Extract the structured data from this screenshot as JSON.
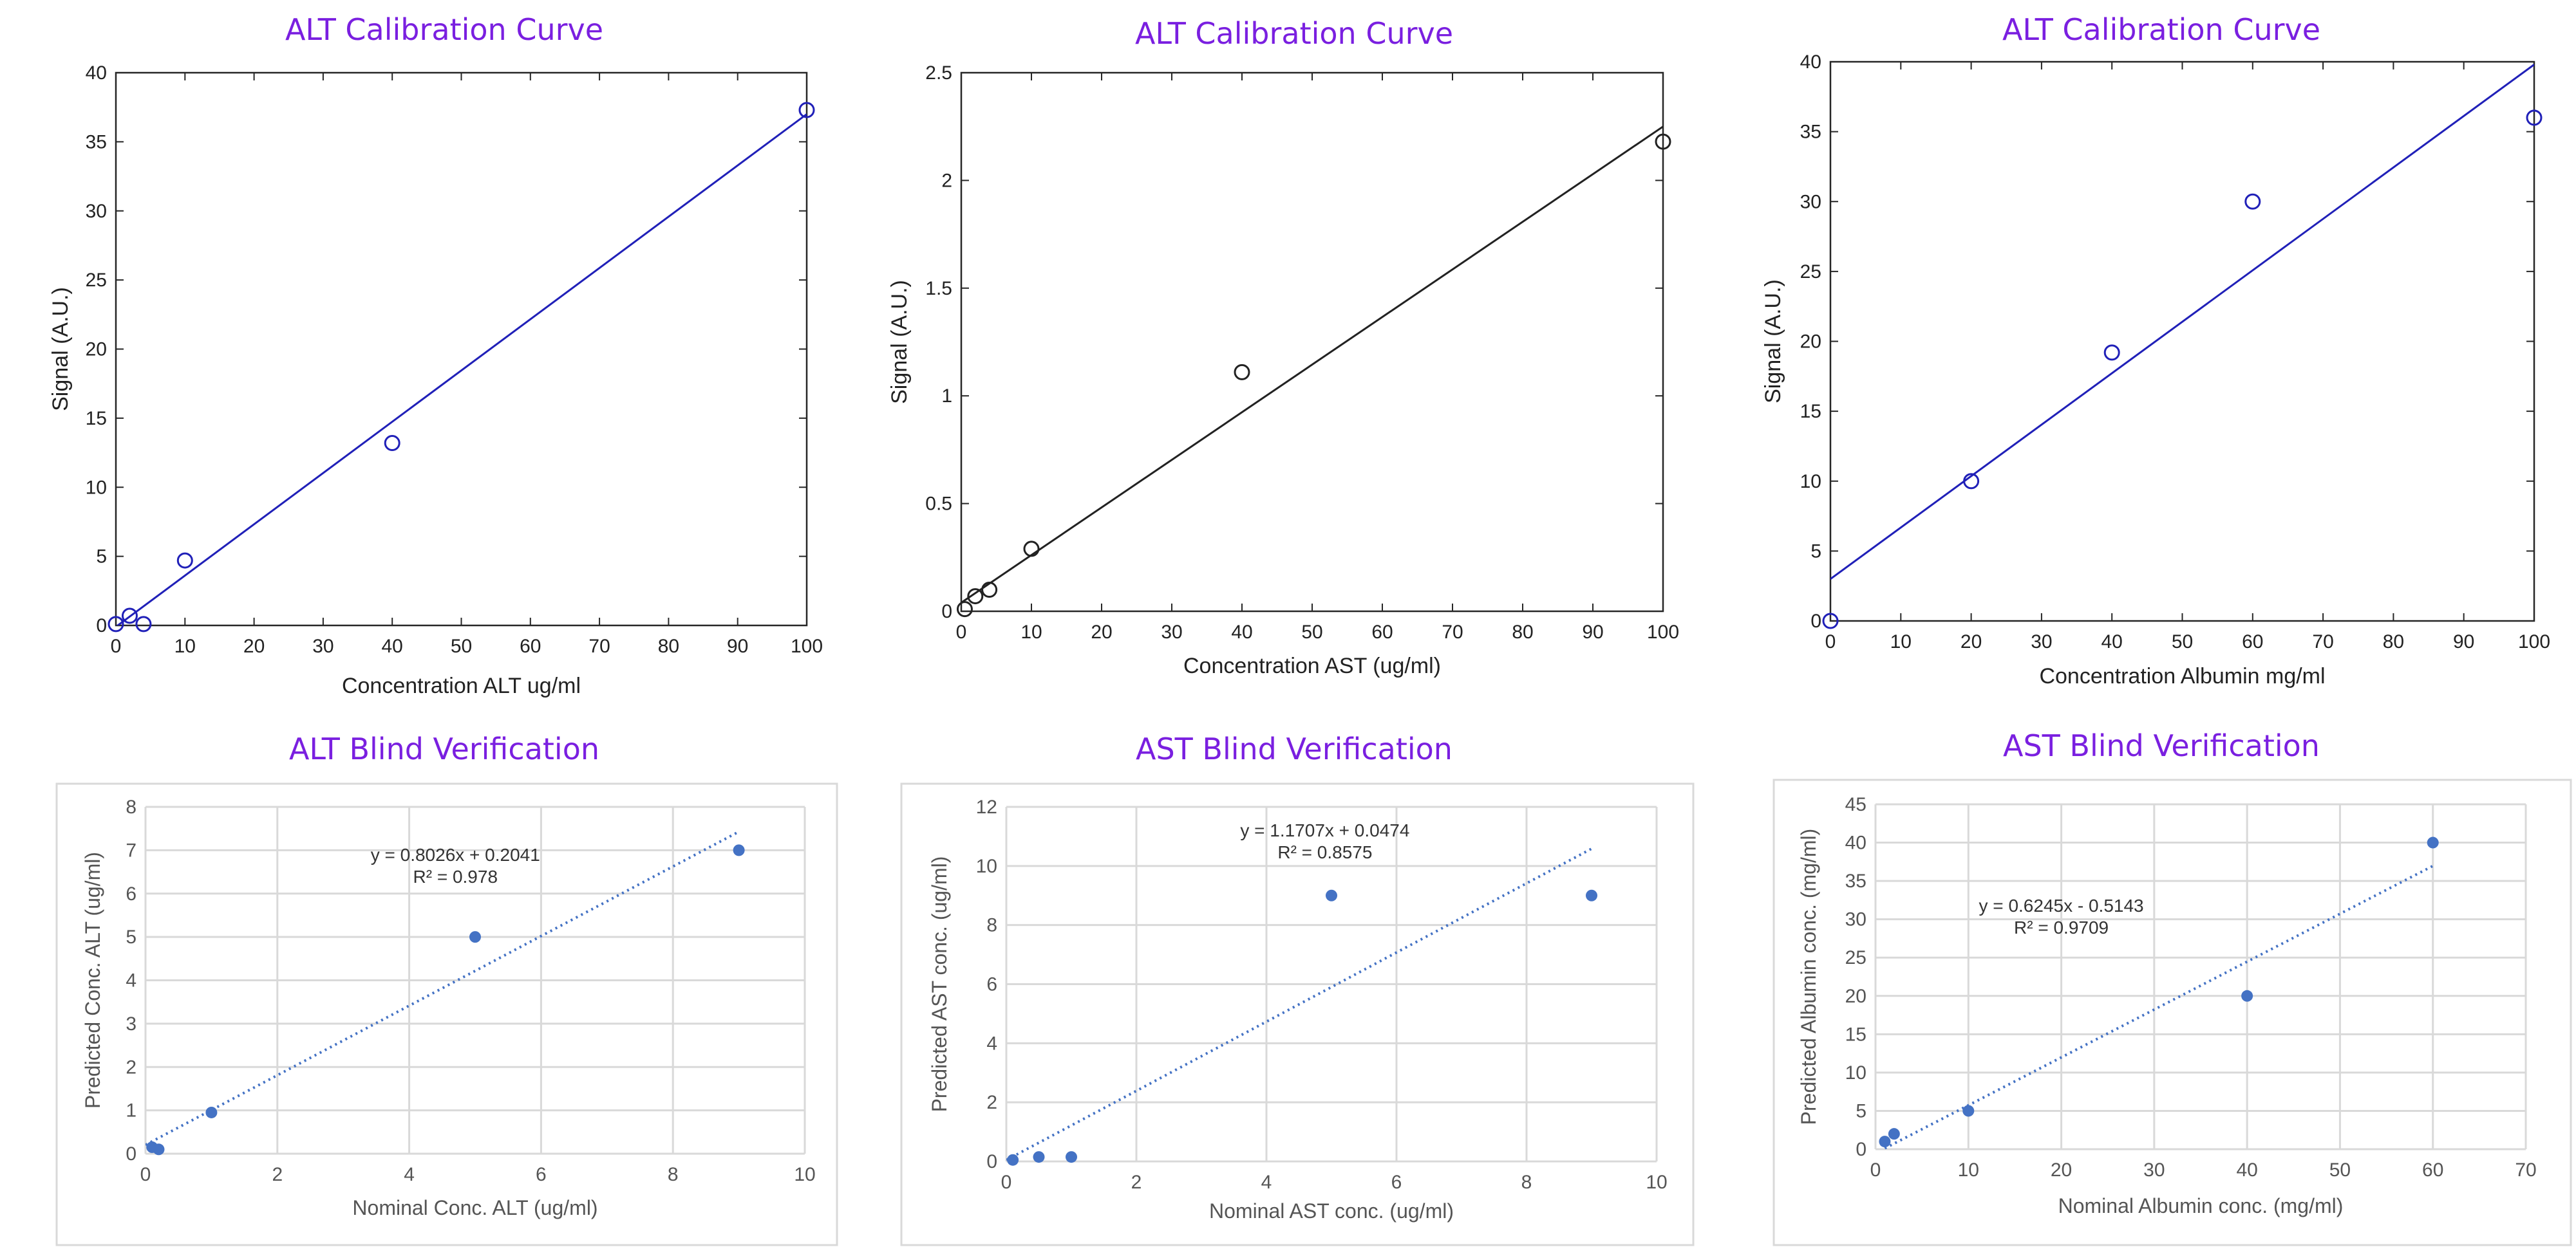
{
  "chart_data": [
    {
      "type": "scatter",
      "style": "matlab",
      "title": "ALT Calibration Curve",
      "xlabel": "Concentration ALT ug/ml",
      "ylabel": "Signal (A.U.)",
      "xlim": [
        0,
        100
      ],
      "ylim": [
        0,
        40
      ],
      "xticks": [
        0,
        10,
        20,
        30,
        40,
        50,
        60,
        70,
        80,
        90,
        100
      ],
      "yticks": [
        0,
        5,
        10,
        15,
        20,
        25,
        30,
        35,
        40
      ],
      "color": "#2020b8",
      "points": [
        {
          "x": 0,
          "y": 0.1
        },
        {
          "x": 2,
          "y": 0.7
        },
        {
          "x": 4,
          "y": 0.1
        },
        {
          "x": 10,
          "y": 4.7
        },
        {
          "x": 40,
          "y": 13.2
        },
        {
          "x": 100,
          "y": 37.3
        }
      ],
      "fit": {
        "x1": 0,
        "y1": -0.1,
        "x2": 100,
        "y2": 37.0
      }
    },
    {
      "type": "scatter",
      "style": "matlab",
      "title": "ALT Calibration Curve",
      "xlabel": "Concentration AST (ug/ml)",
      "ylabel": "Signal (A.U.)",
      "xlim": [
        0,
        100
      ],
      "ylim": [
        0,
        2.5
      ],
      "xticks": [
        0,
        10,
        20,
        30,
        40,
        50,
        60,
        70,
        80,
        90,
        100
      ],
      "yticks": [
        0,
        0.5,
        1,
        1.5,
        2,
        2.5
      ],
      "color": "#222222",
      "points": [
        {
          "x": 0.5,
          "y": 0.01
        },
        {
          "x": 2,
          "y": 0.07
        },
        {
          "x": 4,
          "y": 0.1
        },
        {
          "x": 10,
          "y": 0.29
        },
        {
          "x": 40,
          "y": 1.11
        },
        {
          "x": 100,
          "y": 2.18
        }
      ],
      "fit": {
        "x1": 0,
        "y1": 0.04,
        "x2": 100,
        "y2": 2.25
      }
    },
    {
      "type": "scatter",
      "style": "matlab",
      "title": "ALT Calibration Curve",
      "xlabel": "Concentration Albumin mg/ml",
      "ylabel": "Signal (A.U.)",
      "xlim": [
        0,
        100
      ],
      "ylim": [
        0,
        40
      ],
      "xticks": [
        0,
        10,
        20,
        30,
        40,
        50,
        60,
        70,
        80,
        90,
        100
      ],
      "yticks": [
        0,
        5,
        10,
        15,
        20,
        25,
        30,
        35,
        40
      ],
      "color": "#2020b8",
      "points": [
        {
          "x": 0,
          "y": 0
        },
        {
          "x": 20,
          "y": 10
        },
        {
          "x": 40,
          "y": 19.2
        },
        {
          "x": 60,
          "y": 30
        },
        {
          "x": 100,
          "y": 36
        }
      ],
      "fit": {
        "x1": 0,
        "y1": 3.0,
        "x2": 100,
        "y2": 39.8
      }
    },
    {
      "type": "scatter",
      "style": "excel",
      "title": "ALT Blind Verification",
      "xlabel": "Nominal Conc. ALT (ug/ml)",
      "ylabel": "Predicted Conc. ALT (ug/ml)",
      "xlim": [
        0,
        10
      ],
      "ylim": [
        0,
        8
      ],
      "xticks": [
        0,
        2,
        4,
        6,
        8,
        10
      ],
      "yticks": [
        0,
        1,
        2,
        3,
        4,
        5,
        6,
        7,
        8
      ],
      "color": "#4472c4",
      "points": [
        {
          "x": 0.1,
          "y": 0.15
        },
        {
          "x": 0.2,
          "y": 0.1
        },
        {
          "x": 1,
          "y": 0.95
        },
        {
          "x": 5,
          "y": 5
        },
        {
          "x": 9,
          "y": 7
        }
      ],
      "fit": {
        "x1": 0,
        "y1": 0.2041,
        "x2": 9,
        "y2": 7.4275
      },
      "equation": "y = 0.8026x + 0.2041",
      "r2": "R² = 0.978",
      "eq_pos": {
        "x": 4.7,
        "y": 6.75
      }
    },
    {
      "type": "scatter",
      "style": "excel",
      "title": "AST Blind Verification",
      "xlabel": "Nominal AST conc. (ug/ml)",
      "ylabel": "Predicted AST conc. (ug/ml)",
      "xlim": [
        0,
        10
      ],
      "ylim": [
        0,
        12
      ],
      "xticks": [
        0,
        2,
        4,
        6,
        8,
        10
      ],
      "yticks": [
        0,
        2,
        4,
        6,
        8,
        10,
        12
      ],
      "color": "#4472c4",
      "points": [
        {
          "x": 0.1,
          "y": 0.05
        },
        {
          "x": 0.5,
          "y": 0.15
        },
        {
          "x": 1,
          "y": 0.15
        },
        {
          "x": 5,
          "y": 9
        },
        {
          "x": 9,
          "y": 9
        }
      ],
      "fit": {
        "x1": 0,
        "y1": 0.0474,
        "x2": 9,
        "y2": 10.5837
      },
      "equation": "y = 1.1707x + 0.0474",
      "r2": "R² = 0.8575",
      "eq_pos": {
        "x": 4.9,
        "y": 11.0
      }
    },
    {
      "type": "scatter",
      "style": "excel",
      "title": "AST Blind Verification",
      "xlabel": "Nominal Albumin  conc. (mg/ml)",
      "ylabel": "Predicted Albumin conc. (mg/ml)",
      "xlim": [
        0,
        70
      ],
      "ylim": [
        0,
        45
      ],
      "xticks": [
        0,
        10,
        20,
        30,
        40,
        50,
        60,
        70
      ],
      "yticks": [
        0,
        5,
        10,
        15,
        20,
        25,
        30,
        35,
        40,
        45
      ],
      "color": "#4472c4",
      "points": [
        {
          "x": 1,
          "y": 1
        },
        {
          "x": 2,
          "y": 2
        },
        {
          "x": 10,
          "y": 5
        },
        {
          "x": 40,
          "y": 20
        },
        {
          "x": 60,
          "y": 40
        }
      ],
      "fit": {
        "x1": 1,
        "y1": 0.11,
        "x2": 60,
        "y2": 36.96
      },
      "equation": "y = 0.6245x - 0.5143",
      "r2": "R² = 0.9709",
      "eq_pos": {
        "x": 20,
        "y": 31
      }
    }
  ]
}
